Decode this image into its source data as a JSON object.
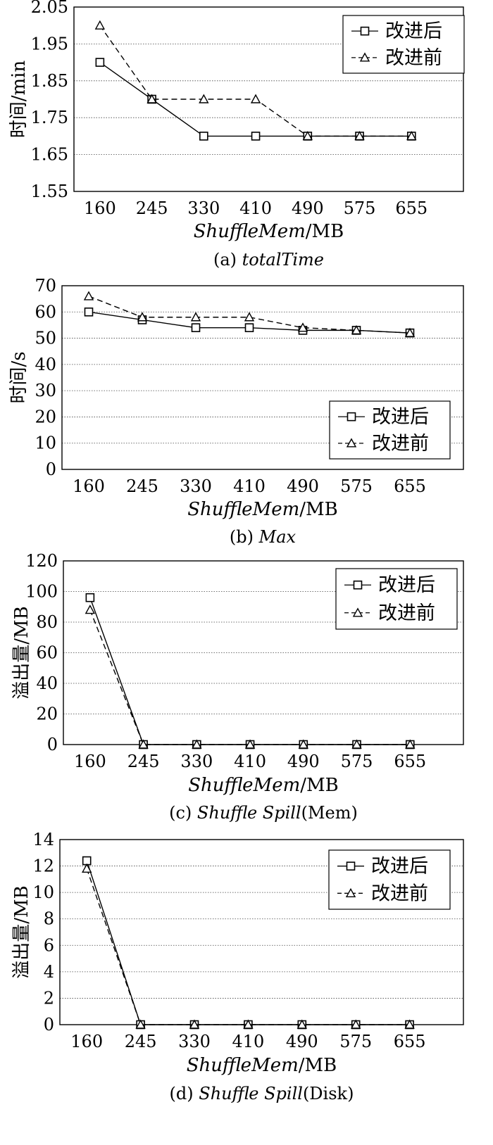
{
  "chart_data": [
    {
      "type": "line",
      "caption_prefix": "(a) ",
      "caption_italic": "totalTime",
      "caption_suffix": "",
      "xlabel_italic": "ShuffleMem",
      "xlabel_suffix": "/MB",
      "ylabel": "时间/min",
      "categories": [
        "160",
        "245",
        "330",
        "410",
        "490",
        "575",
        "655"
      ],
      "ylim": [
        1.55,
        2.05
      ],
      "yticks": [
        1.55,
        1.65,
        1.75,
        1.85,
        1.95,
        2.05
      ],
      "ytick_labels": [
        "1.55",
        "1.65",
        "1.75",
        "1.85",
        "1.95",
        "2.05"
      ],
      "grid": true,
      "legend_position": "top-right",
      "series": [
        {
          "name": "改进后",
          "marker": "square",
          "dash": "solid",
          "values": [
            1.9,
            1.8,
            1.7,
            1.7,
            1.7,
            1.7,
            1.7
          ]
        },
        {
          "name": "改进前",
          "marker": "triangle",
          "dash": "dashed",
          "values": [
            2.0,
            1.8,
            1.8,
            1.8,
            1.7,
            1.7,
            1.7
          ]
        }
      ]
    },
    {
      "type": "line",
      "caption_prefix": "(b) ",
      "caption_italic": "Max",
      "caption_suffix": "",
      "xlabel_italic": "ShuffleMem",
      "xlabel_suffix": "/MB",
      "ylabel": "时间/s",
      "categories": [
        "160",
        "245",
        "330",
        "410",
        "490",
        "575",
        "655"
      ],
      "ylim": [
        0,
        70
      ],
      "yticks": [
        0,
        10,
        20,
        30,
        40,
        50,
        60,
        70
      ],
      "ytick_labels": [
        "0",
        "10",
        "20",
        "30",
        "40",
        "50",
        "60",
        "70"
      ],
      "grid": true,
      "legend_position": "bottom-right",
      "series": [
        {
          "name": "改进后",
          "marker": "square",
          "dash": "solid",
          "values": [
            60,
            57,
            54,
            54,
            53,
            53,
            52
          ]
        },
        {
          "name": "改进前",
          "marker": "triangle",
          "dash": "dashed",
          "values": [
            66,
            58,
            58,
            58,
            54,
            53,
            52
          ]
        }
      ]
    },
    {
      "type": "line",
      "caption_prefix": "(c) ",
      "caption_italic": "Shuffle Spill",
      "caption_suffix": "(Mem)",
      "xlabel_italic": "ShuffleMem",
      "xlabel_suffix": "/MB",
      "ylabel": "溢出量/MB",
      "categories": [
        "160",
        "245",
        "330",
        "410",
        "490",
        "575",
        "655"
      ],
      "ylim": [
        0,
        120
      ],
      "yticks": [
        0,
        20,
        40,
        60,
        80,
        100,
        120
      ],
      "ytick_labels": [
        "0",
        "20",
        "40",
        "60",
        "80",
        "100",
        "120"
      ],
      "grid": true,
      "legend_position": "top-right",
      "series": [
        {
          "name": "改进后",
          "marker": "square",
          "dash": "solid",
          "values": [
            96,
            0,
            0,
            0,
            0,
            0,
            0
          ]
        },
        {
          "name": "改进前",
          "marker": "triangle",
          "dash": "dashed",
          "values": [
            88,
            0,
            0,
            0,
            0,
            0,
            0
          ]
        }
      ]
    },
    {
      "type": "line",
      "caption_prefix": "(d) ",
      "caption_italic": "Shuffle Spill",
      "caption_suffix": "(Disk)",
      "xlabel_italic": "ShuffleMem",
      "xlabel_suffix": "/MB",
      "ylabel": "溢出量/MB",
      "categories": [
        "160",
        "245",
        "330",
        "410",
        "490",
        "575",
        "655"
      ],
      "ylim": [
        0,
        14
      ],
      "yticks": [
        0,
        2,
        4,
        6,
        8,
        10,
        12,
        14
      ],
      "ytick_labels": [
        "0",
        "2",
        "4",
        "6",
        "8",
        "10",
        "12",
        "14"
      ],
      "grid": true,
      "legend_position": "top-right",
      "series": [
        {
          "name": "改进后",
          "marker": "square",
          "dash": "solid",
          "values": [
            12.4,
            0,
            0,
            0,
            0,
            0,
            0
          ]
        },
        {
          "name": "改进前",
          "marker": "triangle",
          "dash": "dashed",
          "values": [
            11.8,
            0,
            0,
            0,
            0,
            0,
            0
          ]
        }
      ]
    }
  ]
}
